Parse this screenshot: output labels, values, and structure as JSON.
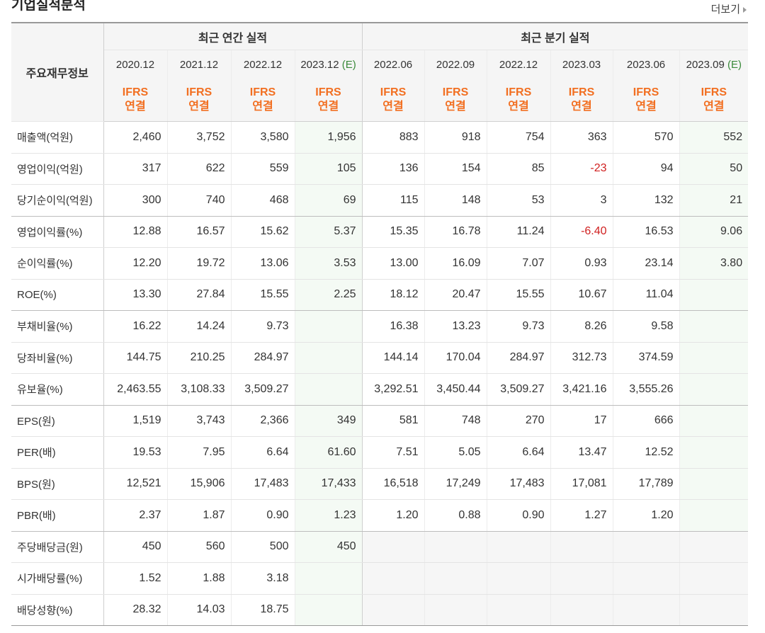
{
  "section_title": "기업실적분석",
  "more_label": "더보기",
  "header": {
    "row_label": "주요재무정보",
    "annual_label": "최근 연간 실적",
    "quarter_label": "최근 분기 실적",
    "annual_periods": [
      {
        "period": "2020.12",
        "est": ""
      },
      {
        "period": "2021.12",
        "est": ""
      },
      {
        "period": "2022.12",
        "est": ""
      },
      {
        "period": "2023.12",
        "est": "(E)"
      }
    ],
    "quarter_periods": [
      {
        "period": "2022.06",
        "est": ""
      },
      {
        "period": "2022.09",
        "est": ""
      },
      {
        "period": "2022.12",
        "est": ""
      },
      {
        "period": "2023.03",
        "est": ""
      },
      {
        "period": "2023.06",
        "est": ""
      },
      {
        "period": "2023.09",
        "est": "(E)"
      }
    ],
    "basis_line1": "IFRS",
    "basis_line2": "연결"
  },
  "rows": [
    {
      "label": "매출액(억원)",
      "annual": [
        "2,460",
        "3,752",
        "3,580",
        "1,956"
      ],
      "quarter": [
        "883",
        "918",
        "754",
        "363",
        "570",
        "552"
      ]
    },
    {
      "label": "영업이익(억원)",
      "annual": [
        "317",
        "622",
        "559",
        "105"
      ],
      "quarter": [
        "136",
        "154",
        "85",
        "-23",
        "94",
        "50"
      ]
    },
    {
      "label": "당기순이익(억원)",
      "annual": [
        "300",
        "740",
        "468",
        "69"
      ],
      "quarter": [
        "115",
        "148",
        "53",
        "3",
        "132",
        "21"
      ]
    },
    {
      "label": "영업이익률(%)",
      "annual": [
        "12.88",
        "16.57",
        "15.62",
        "5.37"
      ],
      "quarter": [
        "15.35",
        "16.78",
        "11.24",
        "-6.40",
        "16.53",
        "9.06"
      ]
    },
    {
      "label": "순이익률(%)",
      "annual": [
        "12.20",
        "19.72",
        "13.06",
        "3.53"
      ],
      "quarter": [
        "13.00",
        "16.09",
        "7.07",
        "0.93",
        "23.14",
        "3.80"
      ]
    },
    {
      "label": "ROE(%)",
      "annual": [
        "13.30",
        "27.84",
        "15.55",
        "2.25"
      ],
      "quarter": [
        "18.12",
        "20.47",
        "15.55",
        "10.67",
        "11.04",
        ""
      ]
    },
    {
      "label": "부채비율(%)",
      "annual": [
        "16.22",
        "14.24",
        "9.73",
        ""
      ],
      "quarter": [
        "16.38",
        "13.23",
        "9.73",
        "8.26",
        "9.58",
        ""
      ]
    },
    {
      "label": "당좌비율(%)",
      "annual": [
        "144.75",
        "210.25",
        "284.97",
        ""
      ],
      "quarter": [
        "144.14",
        "170.04",
        "284.97",
        "312.73",
        "374.59",
        ""
      ]
    },
    {
      "label": "유보율(%)",
      "annual": [
        "2,463.55",
        "3,108.33",
        "3,509.27",
        ""
      ],
      "quarter": [
        "3,292.51",
        "3,450.44",
        "3,509.27",
        "3,421.16",
        "3,555.26",
        ""
      ]
    },
    {
      "label": "EPS(원)",
      "annual": [
        "1,519",
        "3,743",
        "2,366",
        "349"
      ],
      "quarter": [
        "581",
        "748",
        "270",
        "17",
        "666",
        ""
      ]
    },
    {
      "label": "PER(배)",
      "annual": [
        "19.53",
        "7.95",
        "6.64",
        "61.60"
      ],
      "quarter": [
        "7.51",
        "5.05",
        "6.64",
        "13.47",
        "12.52",
        ""
      ]
    },
    {
      "label": "BPS(원)",
      "annual": [
        "12,521",
        "15,906",
        "17,483",
        "17,433"
      ],
      "quarter": [
        "16,518",
        "17,249",
        "17,483",
        "17,081",
        "17,789",
        ""
      ]
    },
    {
      "label": "PBR(배)",
      "annual": [
        "2.37",
        "1.87",
        "0.90",
        "1.23"
      ],
      "quarter": [
        "1.20",
        "0.88",
        "0.90",
        "1.27",
        "1.20",
        ""
      ]
    },
    {
      "label": "주당배당금(원)",
      "annual": [
        "450",
        "560",
        "500",
        "450"
      ],
      "quarter": [
        "",
        "",
        "",
        "",
        "",
        ""
      ]
    },
    {
      "label": "시가배당률(%)",
      "annual": [
        "1.52",
        "1.88",
        "3.18",
        ""
      ],
      "quarter": [
        "",
        "",
        "",
        "",
        "",
        ""
      ]
    },
    {
      "label": "배당성향(%)",
      "annual": [
        "28.32",
        "14.03",
        "18.75",
        ""
      ],
      "quarter": [
        "",
        "",
        "",
        "",
        "",
        ""
      ]
    }
  ],
  "colors": {
    "estimate_bg": "#f4faf4",
    "negative": "#d02020",
    "basis": "#f26f21",
    "estimate_mark": "#3a8a3a"
  }
}
